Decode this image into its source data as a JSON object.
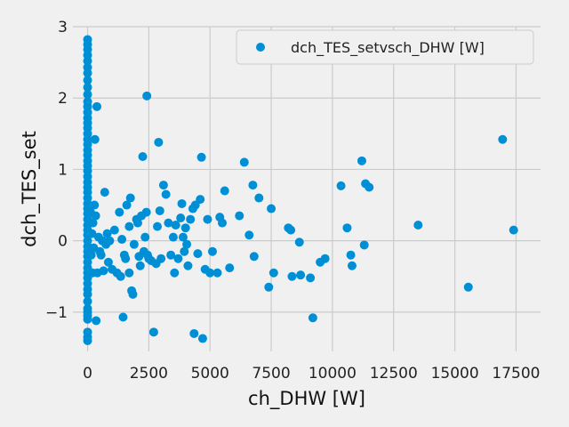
{
  "chart_data": {
    "type": "scatter",
    "title": "",
    "xlabel": "ch_DHW [W]",
    "ylabel": "dch_TES_set",
    "xlim": [
      -600,
      18500
    ],
    "ylim": [
      -1.55,
      3.0
    ],
    "xticks": [
      0,
      2500,
      5000,
      7500,
      10000,
      12500,
      15000,
      17500
    ],
    "yticks": [
      -1,
      0,
      1,
      2,
      3
    ],
    "grid": true,
    "legend": {
      "position": "top-right",
      "entries": [
        "dch_TES_setvsch_DHW [W]"
      ]
    },
    "colors": {
      "marker": "#008fd5",
      "background": "#f0f0f0",
      "grid": "#cbcbcb"
    },
    "series": [
      {
        "name": "dch_TES_setvsch_DHW [W]",
        "points": [
          [
            0,
            2.82
          ],
          [
            0,
            2.75
          ],
          [
            0,
            2.68
          ],
          [
            0,
            2.6
          ],
          [
            0,
            2.52
          ],
          [
            0,
            2.43
          ],
          [
            0,
            2.35
          ],
          [
            0,
            2.25
          ],
          [
            0,
            2.15
          ],
          [
            0,
            2.05
          ],
          [
            0,
            1.95
          ],
          [
            0,
            1.88
          ],
          [
            0,
            1.8
          ],
          [
            0,
            1.72
          ],
          [
            0,
            1.65
          ],
          [
            0,
            1.58
          ],
          [
            0,
            1.5
          ],
          [
            0,
            1.42
          ],
          [
            0,
            1.35
          ],
          [
            0,
            1.27
          ],
          [
            0,
            1.2
          ],
          [
            0,
            1.12
          ],
          [
            0,
            1.05
          ],
          [
            0,
            0.98
          ],
          [
            0,
            0.9
          ],
          [
            0,
            0.82
          ],
          [
            0,
            0.75
          ],
          [
            0,
            0.68
          ],
          [
            0,
            0.6
          ],
          [
            0,
            0.52
          ],
          [
            0,
            0.45
          ],
          [
            0,
            0.38
          ],
          [
            0,
            0.3
          ],
          [
            0,
            0.22
          ],
          [
            0,
            0.15
          ],
          [
            0,
            0.08
          ],
          [
            0,
            0.0
          ],
          [
            0,
            -0.08
          ],
          [
            0,
            -0.15
          ],
          [
            0,
            -0.22
          ],
          [
            0,
            -0.3
          ],
          [
            0,
            -0.38
          ],
          [
            0,
            -0.45
          ],
          [
            0,
            -0.52
          ],
          [
            0,
            -0.6
          ],
          [
            0,
            -0.68
          ],
          [
            0,
            -0.75
          ],
          [
            0,
            -0.85
          ],
          [
            0,
            -0.95
          ],
          [
            0,
            -1.0
          ],
          [
            0,
            -1.05
          ],
          [
            0,
            -1.1
          ],
          [
            0,
            -1.28
          ],
          [
            0,
            -1.35
          ],
          [
            0,
            -1.4
          ],
          [
            120,
            0.4
          ],
          [
            150,
            -0.2
          ],
          [
            180,
            0.1
          ],
          [
            200,
            -0.45
          ],
          [
            220,
            0.25
          ],
          [
            250,
            -0.1
          ],
          [
            280,
            0.5
          ],
          [
            300,
            1.42
          ],
          [
            330,
            0.35
          ],
          [
            350,
            -1.12
          ],
          [
            380,
            1.88
          ],
          [
            400,
            -0.45
          ],
          [
            450,
            0.05
          ],
          [
            500,
            -0.15
          ],
          [
            550,
            -0.2
          ],
          [
            600,
            0.0
          ],
          [
            650,
            -0.42
          ],
          [
            700,
            0.68
          ],
          [
            750,
            -0.05
          ],
          [
            800,
            0.1
          ],
          [
            850,
            -0.3
          ],
          [
            900,
            0.0
          ],
          [
            1000,
            -0.4
          ],
          [
            1100,
            0.15
          ],
          [
            1200,
            -0.45
          ],
          [
            1300,
            0.4
          ],
          [
            1350,
            -0.5
          ],
          [
            1400,
            0.02
          ],
          [
            1450,
            -1.07
          ],
          [
            1500,
            -0.2
          ],
          [
            1550,
            -0.25
          ],
          [
            1600,
            0.5
          ],
          [
            1700,
            -0.45
          ],
          [
            1700,
            0.2
          ],
          [
            1750,
            0.6
          ],
          [
            1800,
            -0.7
          ],
          [
            1850,
            -0.75
          ],
          [
            1900,
            -0.05
          ],
          [
            2000,
            0.3
          ],
          [
            2050,
            0.25
          ],
          [
            2100,
            -0.22
          ],
          [
            2150,
            -0.35
          ],
          [
            2200,
            0.35
          ],
          [
            2250,
            1.18
          ],
          [
            2300,
            -0.15
          ],
          [
            2350,
            0.05
          ],
          [
            2400,
            0.4
          ],
          [
            2420,
            2.03
          ],
          [
            2450,
            -0.2
          ],
          [
            2500,
            -0.25
          ],
          [
            2600,
            -0.28
          ],
          [
            2700,
            -1.28
          ],
          [
            2800,
            -0.32
          ],
          [
            2850,
            0.2
          ],
          [
            2900,
            1.38
          ],
          [
            2950,
            0.42
          ],
          [
            3000,
            -0.25
          ],
          [
            3100,
            0.78
          ],
          [
            3200,
            0.65
          ],
          [
            3300,
            0.25
          ],
          [
            3400,
            -0.2
          ],
          [
            3500,
            0.05
          ],
          [
            3550,
            -0.45
          ],
          [
            3600,
            0.22
          ],
          [
            3700,
            -0.25
          ],
          [
            3800,
            0.32
          ],
          [
            3850,
            0.52
          ],
          [
            3900,
            0.05
          ],
          [
            3950,
            -0.15
          ],
          [
            4000,
            0.18
          ],
          [
            4050,
            -0.05
          ],
          [
            4100,
            -0.35
          ],
          [
            4200,
            0.3
          ],
          [
            4300,
            0.45
          ],
          [
            4350,
            -1.3
          ],
          [
            4400,
            0.5
          ],
          [
            4500,
            -0.18
          ],
          [
            4600,
            0.58
          ],
          [
            4650,
            1.17
          ],
          [
            4700,
            -1.37
          ],
          [
            4800,
            -0.4
          ],
          [
            4900,
            0.3
          ],
          [
            5000,
            -0.45
          ],
          [
            5100,
            -0.15
          ],
          [
            5300,
            -0.45
          ],
          [
            5400,
            0.33
          ],
          [
            5500,
            0.25
          ],
          [
            5600,
            0.7
          ],
          [
            5800,
            -0.38
          ],
          [
            6200,
            0.35
          ],
          [
            6400,
            1.1
          ],
          [
            6600,
            0.08
          ],
          [
            6750,
            0.78
          ],
          [
            6800,
            -0.22
          ],
          [
            7000,
            0.6
          ],
          [
            7400,
            -0.65
          ],
          [
            7500,
            0.45
          ],
          [
            7600,
            -0.45
          ],
          [
            8200,
            0.18
          ],
          [
            8300,
            0.15
          ],
          [
            8350,
            -0.5
          ],
          [
            8650,
            -0.02
          ],
          [
            8700,
            -0.48
          ],
          [
            9100,
            -0.52
          ],
          [
            9200,
            -1.08
          ],
          [
            9500,
            -0.3
          ],
          [
            9700,
            -0.25
          ],
          [
            10350,
            0.77
          ],
          [
            10600,
            0.18
          ],
          [
            10750,
            -0.2
          ],
          [
            10800,
            -0.35
          ],
          [
            11200,
            1.12
          ],
          [
            11300,
            -0.06
          ],
          [
            11350,
            0.8
          ],
          [
            11500,
            0.75
          ],
          [
            13500,
            0.22
          ],
          [
            15550,
            -0.65
          ],
          [
            16950,
            1.42
          ],
          [
            17400,
            0.15
          ]
        ]
      }
    ]
  }
}
